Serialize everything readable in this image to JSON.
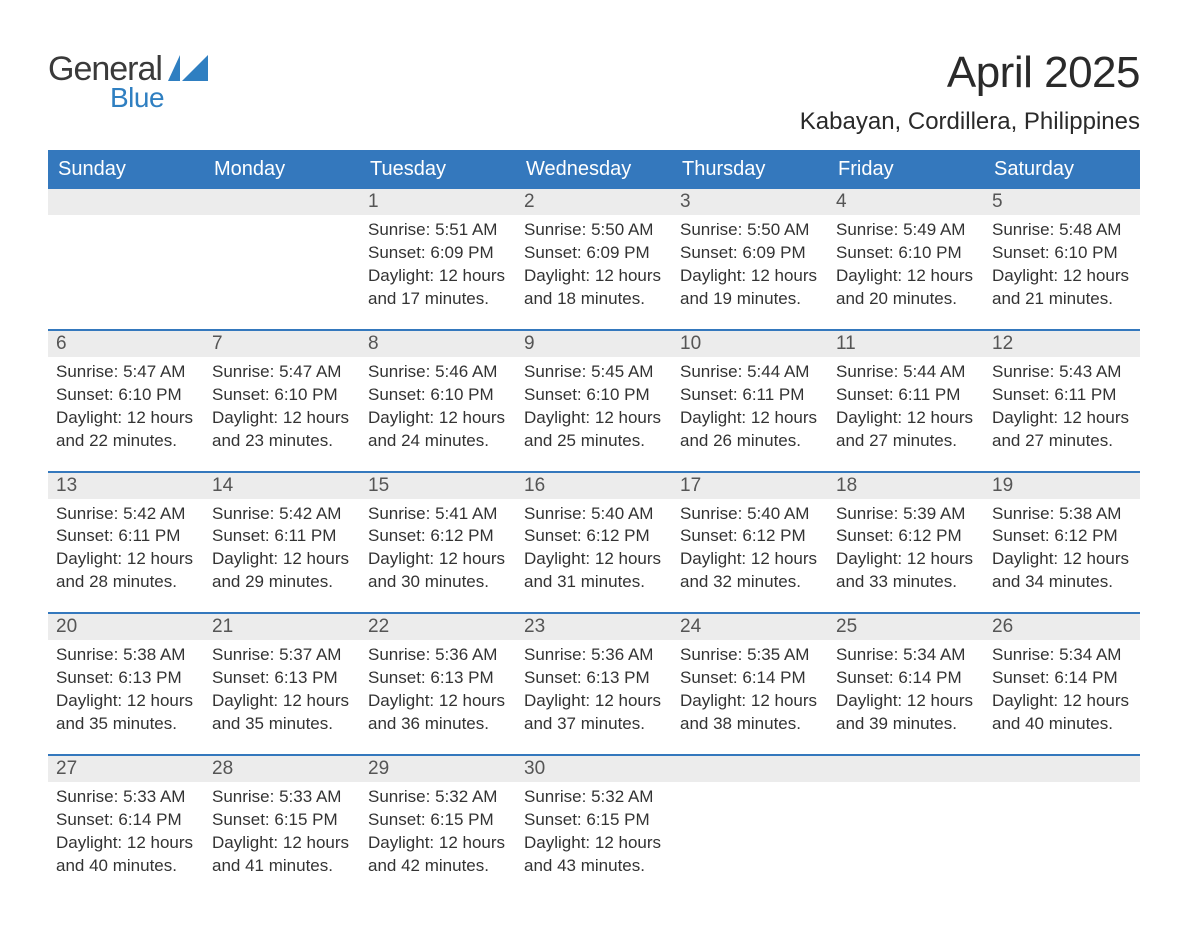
{
  "logo": {
    "text_top": "General",
    "text_bottom": "Blue",
    "top_color": "#3a3a3a",
    "bottom_color": "#2f7fc1",
    "flag_color": "#2f7fc1"
  },
  "header": {
    "month_title": "April 2025",
    "location": "Kabayan, Cordillera, Philippines"
  },
  "colors": {
    "header_bg": "#3478bd",
    "header_text": "#ffffff",
    "daynum_bg": "#ececec",
    "daynum_border": "#3478bd",
    "body_text": "#333333",
    "page_bg": "#ffffff"
  },
  "weekdays": [
    "Sunday",
    "Monday",
    "Tuesday",
    "Wednesday",
    "Thursday",
    "Friday",
    "Saturday"
  ],
  "weeks": [
    [
      null,
      null,
      {
        "day": "1",
        "sunrise": "5:51 AM",
        "sunset": "6:09 PM",
        "daylight": "12 hours and 17 minutes."
      },
      {
        "day": "2",
        "sunrise": "5:50 AM",
        "sunset": "6:09 PM",
        "daylight": "12 hours and 18 minutes."
      },
      {
        "day": "3",
        "sunrise": "5:50 AM",
        "sunset": "6:09 PM",
        "daylight": "12 hours and 19 minutes."
      },
      {
        "day": "4",
        "sunrise": "5:49 AM",
        "sunset": "6:10 PM",
        "daylight": "12 hours and 20 minutes."
      },
      {
        "day": "5",
        "sunrise": "5:48 AM",
        "sunset": "6:10 PM",
        "daylight": "12 hours and 21 minutes."
      }
    ],
    [
      {
        "day": "6",
        "sunrise": "5:47 AM",
        "sunset": "6:10 PM",
        "daylight": "12 hours and 22 minutes."
      },
      {
        "day": "7",
        "sunrise": "5:47 AM",
        "sunset": "6:10 PM",
        "daylight": "12 hours and 23 minutes."
      },
      {
        "day": "8",
        "sunrise": "5:46 AM",
        "sunset": "6:10 PM",
        "daylight": "12 hours and 24 minutes."
      },
      {
        "day": "9",
        "sunrise": "5:45 AM",
        "sunset": "6:10 PM",
        "daylight": "12 hours and 25 minutes."
      },
      {
        "day": "10",
        "sunrise": "5:44 AM",
        "sunset": "6:11 PM",
        "daylight": "12 hours and 26 minutes."
      },
      {
        "day": "11",
        "sunrise": "5:44 AM",
        "sunset": "6:11 PM",
        "daylight": "12 hours and 27 minutes."
      },
      {
        "day": "12",
        "sunrise": "5:43 AM",
        "sunset": "6:11 PM",
        "daylight": "12 hours and 27 minutes."
      }
    ],
    [
      {
        "day": "13",
        "sunrise": "5:42 AM",
        "sunset": "6:11 PM",
        "daylight": "12 hours and 28 minutes."
      },
      {
        "day": "14",
        "sunrise": "5:42 AM",
        "sunset": "6:11 PM",
        "daylight": "12 hours and 29 minutes."
      },
      {
        "day": "15",
        "sunrise": "5:41 AM",
        "sunset": "6:12 PM",
        "daylight": "12 hours and 30 minutes."
      },
      {
        "day": "16",
        "sunrise": "5:40 AM",
        "sunset": "6:12 PM",
        "daylight": "12 hours and 31 minutes."
      },
      {
        "day": "17",
        "sunrise": "5:40 AM",
        "sunset": "6:12 PM",
        "daylight": "12 hours and 32 minutes."
      },
      {
        "day": "18",
        "sunrise": "5:39 AM",
        "sunset": "6:12 PM",
        "daylight": "12 hours and 33 minutes."
      },
      {
        "day": "19",
        "sunrise": "5:38 AM",
        "sunset": "6:12 PM",
        "daylight": "12 hours and 34 minutes."
      }
    ],
    [
      {
        "day": "20",
        "sunrise": "5:38 AM",
        "sunset": "6:13 PM",
        "daylight": "12 hours and 35 minutes."
      },
      {
        "day": "21",
        "sunrise": "5:37 AM",
        "sunset": "6:13 PM",
        "daylight": "12 hours and 35 minutes."
      },
      {
        "day": "22",
        "sunrise": "5:36 AM",
        "sunset": "6:13 PM",
        "daylight": "12 hours and 36 minutes."
      },
      {
        "day": "23",
        "sunrise": "5:36 AM",
        "sunset": "6:13 PM",
        "daylight": "12 hours and 37 minutes."
      },
      {
        "day": "24",
        "sunrise": "5:35 AM",
        "sunset": "6:14 PM",
        "daylight": "12 hours and 38 minutes."
      },
      {
        "day": "25",
        "sunrise": "5:34 AM",
        "sunset": "6:14 PM",
        "daylight": "12 hours and 39 minutes."
      },
      {
        "day": "26",
        "sunrise": "5:34 AM",
        "sunset": "6:14 PM",
        "daylight": "12 hours and 40 minutes."
      }
    ],
    [
      {
        "day": "27",
        "sunrise": "5:33 AM",
        "sunset": "6:14 PM",
        "daylight": "12 hours and 40 minutes."
      },
      {
        "day": "28",
        "sunrise": "5:33 AM",
        "sunset": "6:15 PM",
        "daylight": "12 hours and 41 minutes."
      },
      {
        "day": "29",
        "sunrise": "5:32 AM",
        "sunset": "6:15 PM",
        "daylight": "12 hours and 42 minutes."
      },
      {
        "day": "30",
        "sunrise": "5:32 AM",
        "sunset": "6:15 PM",
        "daylight": "12 hours and 43 minutes."
      },
      null,
      null,
      null
    ]
  ],
  "labels": {
    "sunrise_prefix": "Sunrise: ",
    "sunset_prefix": "Sunset: ",
    "daylight_prefix": "Daylight: "
  }
}
